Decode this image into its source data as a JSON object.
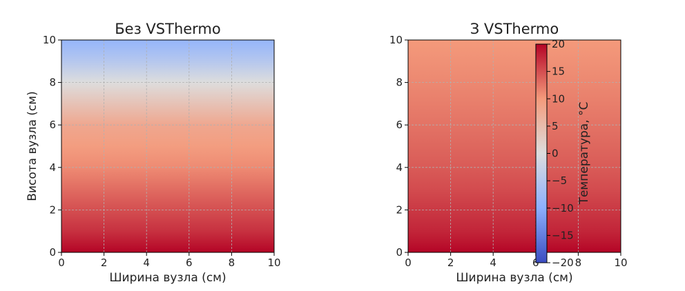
{
  "chart_data": [
    {
      "type": "heatmap",
      "title": "Без VSThermo",
      "xlabel": "Ширина вузла (см)",
      "ylabel": "Висота вузла (см)",
      "xlim": [
        0,
        10
      ],
      "ylim": [
        0,
        10
      ],
      "xticks": [
        0,
        2,
        4,
        6,
        8,
        10
      ],
      "yticks": [
        0,
        2,
        4,
        6,
        8,
        10
      ],
      "grid": true,
      "gradient_axis": "y",
      "profile": {
        "y": [
          0,
          0.5,
          1,
          2,
          3,
          4,
          5,
          6,
          7,
          8,
          9,
          10
        ],
        "temperature": [
          20,
          18.5,
          17,
          15,
          13,
          11,
          9.5,
          8,
          4,
          0,
          -5,
          -9
        ]
      }
    },
    {
      "type": "heatmap",
      "title": "З VSThermo",
      "xlabel": "Ширина вузла (см)",
      "ylabel": "",
      "xlim": [
        0,
        10
      ],
      "ylim": [
        0,
        10
      ],
      "xticks": [
        0,
        2,
        4,
        6,
        8,
        10
      ],
      "yticks": [
        0,
        2,
        4,
        6,
        8,
        10
      ],
      "grid": true,
      "gradient_axis": "y",
      "profile": {
        "y": [
          0,
          0.5,
          1,
          2,
          3,
          4,
          5,
          6,
          7,
          8,
          9,
          10
        ],
        "temperature": [
          20,
          18.8,
          17.8,
          16.5,
          15.2,
          14.2,
          13.4,
          12.6,
          11.9,
          11.2,
          10.6,
          10
        ]
      }
    }
  ],
  "colorbar": {
    "label": "Температура, °C",
    "range": [
      -20,
      20
    ],
    "ticks": [
      20,
      15,
      10,
      5,
      0,
      -5,
      -10,
      -15,
      -20
    ],
    "tick_labels": [
      "20",
      "15",
      "10",
      "5",
      "0",
      "−5",
      "−10",
      "−15",
      "−20"
    ],
    "colormap": [
      {
        "value": -20,
        "color": "#3b4cc0"
      },
      {
        "value": -10,
        "color": "#8db0fe"
      },
      {
        "value": 0,
        "color": "#dddddd"
      },
      {
        "value": 10,
        "color": "#f49a7b"
      },
      {
        "value": 20,
        "color": "#b40426"
      }
    ]
  }
}
